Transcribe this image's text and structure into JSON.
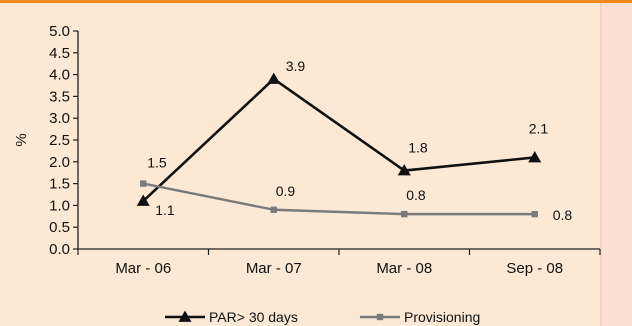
{
  "chart_data": {
    "type": "line",
    "categories": [
      "Mar - 06",
      "Mar - 07",
      "Mar - 08",
      "Sep - 08"
    ],
    "ylabel": "%",
    "ylim": [
      0,
      5.0
    ],
    "yticks": [
      "0.0",
      "0.5",
      "1.0",
      "1.5",
      "2.0",
      "2.5",
      "3.0",
      "3.5",
      "4.0",
      "4.5",
      "5.0"
    ],
    "grid": false,
    "legend_position": "bottom",
    "series": [
      {
        "name": "PAR> 30 days",
        "values": [
          1.1,
          3.9,
          1.8,
          2.1
        ],
        "labels": [
          "1.1",
          "3.9",
          "1.8",
          "2.1"
        ],
        "color": "#111111",
        "marker": "triangle"
      },
      {
        "name": "Provisioning",
        "values": [
          1.5,
          0.9,
          0.8,
          0.8
        ],
        "labels": [
          "1.5",
          "0.9",
          "0.8",
          "0.8"
        ],
        "color": "#7a7a7a",
        "marker": "square"
      }
    ]
  },
  "colors": {
    "background": "#fbe9d5",
    "accent": "#f18b1e"
  }
}
